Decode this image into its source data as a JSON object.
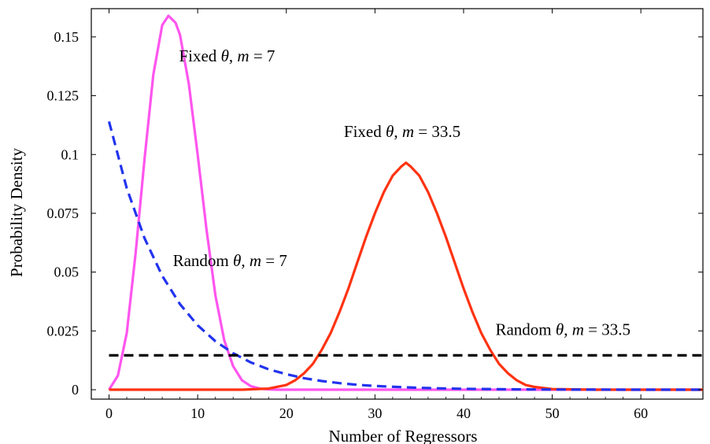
{
  "chart_data": {
    "type": "line",
    "title": "",
    "xlabel": "Number of Regressors",
    "ylabel": "Probability Density",
    "xlim": [
      -2,
      67
    ],
    "ylim": [
      -0.004,
      0.162
    ],
    "grid": false,
    "legend": "none",
    "x_ticks": [
      {
        "value": 0,
        "label": "0"
      },
      {
        "value": 10,
        "label": "10"
      },
      {
        "value": 20,
        "label": "20"
      },
      {
        "value": 30,
        "label": "30"
      },
      {
        "value": 40,
        "label": "40"
      },
      {
        "value": 50,
        "label": "50"
      },
      {
        "value": 60,
        "label": "60"
      }
    ],
    "y_ticks": [
      {
        "value": 0,
        "label": "0"
      },
      {
        "value": 0.025,
        "label": "0.025"
      },
      {
        "value": 0.05,
        "label": "0.05"
      },
      {
        "value": 0.075,
        "label": "0.075"
      },
      {
        "value": 0.1,
        "label": "0.1"
      },
      {
        "value": 0.125,
        "label": "0.125"
      },
      {
        "value": 0.15,
        "label": "0.15"
      }
    ],
    "series": [
      {
        "color": "#ff55ee",
        "dash": "solid",
        "x": [
          0,
          1,
          2,
          3,
          4,
          5,
          6,
          6.7,
          7.5,
          8,
          9,
          10,
          11,
          12,
          13,
          14,
          15,
          16,
          17,
          18,
          19,
          20,
          25,
          30,
          67
        ],
        "y": [
          0.0,
          0.006,
          0.024,
          0.058,
          0.098,
          0.134,
          0.155,
          0.159,
          0.156,
          0.151,
          0.13,
          0.1,
          0.068,
          0.04,
          0.021,
          0.01,
          0.004,
          0.0015,
          0.0005,
          0.0001,
          0.0,
          0.0,
          0.0,
          0.0,
          0.0
        ]
      },
      {
        "color": "#ff3311",
        "dash": "solid",
        "x": [
          0,
          10,
          15,
          18,
          20,
          21,
          22,
          23,
          24,
          25,
          26,
          27,
          28,
          29,
          30,
          31,
          32,
          33,
          33.5,
          34,
          35,
          36,
          37,
          38,
          39,
          40,
          41,
          42,
          43,
          44,
          45,
          46,
          47,
          48,
          50,
          55,
          67
        ],
        "y": [
          0.0,
          0.0,
          0.0,
          0.0005,
          0.002,
          0.004,
          0.007,
          0.011,
          0.017,
          0.024,
          0.033,
          0.043,
          0.054,
          0.065,
          0.075,
          0.084,
          0.091,
          0.095,
          0.0965,
          0.095,
          0.091,
          0.084,
          0.075,
          0.065,
          0.054,
          0.043,
          0.033,
          0.024,
          0.017,
          0.011,
          0.007,
          0.004,
          0.002,
          0.0012,
          0.0003,
          0.0,
          0.0
        ]
      },
      {
        "color": "#2233ee",
        "dash": "dashed",
        "x": [
          0,
          2,
          4,
          6,
          8,
          10,
          12,
          14,
          16,
          18,
          20,
          22,
          24,
          26,
          28,
          30,
          35,
          40,
          45,
          50,
          55,
          60,
          67
        ],
        "y": [
          0.114,
          0.0857,
          0.0644,
          0.0484,
          0.0364,
          0.0274,
          0.0206,
          0.0155,
          0.0116,
          0.0087,
          0.0066,
          0.0049,
          0.0037,
          0.0028,
          0.0021,
          0.0016,
          0.00077,
          0.00037,
          0.00018,
          9e-05,
          4e-05,
          2e-05,
          0.0
        ]
      },
      {
        "color": "#000000",
        "dash": "dashed",
        "x": [
          0,
          67
        ],
        "y": [
          0.0146,
          0.0146
        ]
      }
    ],
    "annotations": [
      {
        "pre": "Fixed ",
        "var": "θ",
        "mid": ", ",
        "param": "m",
        "post": " = 7",
        "x": 7.9,
        "y": 0.1395
      },
      {
        "pre": "Fixed ",
        "var": "θ",
        "mid": ", ",
        "param": "m",
        "post": " = 33.5",
        "x": 26.5,
        "y": 0.1075
      },
      {
        "pre": "Random ",
        "var": "θ",
        "mid": ", ",
        "param": "m",
        "post": " = 7",
        "x": 7.2,
        "y": 0.0525
      },
      {
        "pre": "Random ",
        "var": "θ",
        "mid": ", ",
        "param": "m",
        "post": " = 33.5",
        "x": 43.6,
        "y": 0.0233
      }
    ]
  }
}
